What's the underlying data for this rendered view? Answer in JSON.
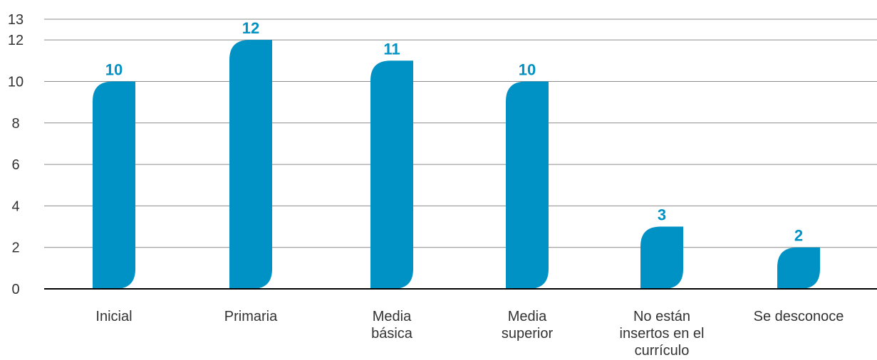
{
  "chart_data": {
    "type": "bar",
    "categories": [
      [
        "Inicial"
      ],
      [
        "Primaria"
      ],
      [
        "Media",
        "básica"
      ],
      [
        "Media",
        "superior"
      ],
      [
        "No están",
        "insertos en el",
        "currículo"
      ],
      [
        "Se desconoce"
      ]
    ],
    "values": [
      10,
      12,
      11,
      10,
      3,
      2
    ],
    "data_labels": [
      "10",
      "12",
      "11",
      "10",
      "3",
      "2"
    ],
    "yticks": [
      "0",
      "2",
      "4",
      "6",
      "8",
      "10",
      "12",
      "13"
    ],
    "ytick_values": [
      0,
      2,
      4,
      6,
      8,
      10,
      12,
      13
    ],
    "ylim": [
      0,
      13
    ],
    "title": "",
    "xlabel": "",
    "ylabel": "",
    "grid": true,
    "legend": "none",
    "bar_color": "#0092c5",
    "label_color": "#0092c5",
    "grid_color": "#8c8c8c",
    "axis_color": "#000000"
  }
}
